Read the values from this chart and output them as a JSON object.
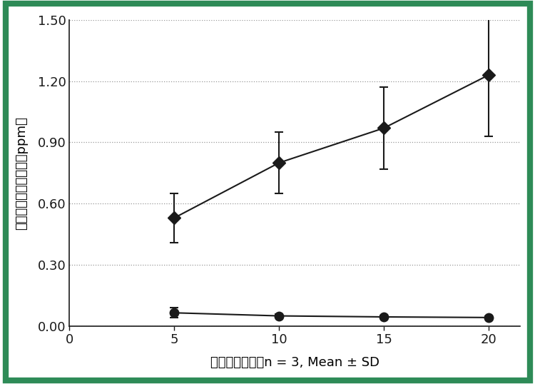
{
  "xlabel": "時間（分）",
  "xlabel_suffix": "n = 3, Mean ± SD",
  "ylabel": "フッ化物イオン濃度（ppm）",
  "x": [
    5,
    10,
    15,
    20
  ],
  "series1_y": [
    0.53,
    0.8,
    0.97,
    1.23
  ],
  "series1_yerr": [
    0.12,
    0.15,
    0.2,
    0.3
  ],
  "series2_y": [
    0.065,
    0.05,
    0.045,
    0.042
  ],
  "series2_yerr": [
    0.025,
    0.01,
    0.008,
    0.006
  ],
  "xlim": [
    0,
    21.5
  ],
  "ylim": [
    0.0,
    1.5
  ],
  "yticks": [
    0.0,
    0.3,
    0.6,
    0.9,
    1.2,
    1.5
  ],
  "xticks": [
    0,
    5,
    10,
    15,
    20
  ],
  "grid_color": "#999999",
  "background_color": "#ffffff",
  "border_color": "#2e8b57",
  "series1_color": "#1a1a1a",
  "series2_color": "#1a1a1a",
  "marker1_size": 9,
  "marker2_size": 9,
  "line_width": 1.5,
  "cap_size": 4,
  "cap_thick": 1.5
}
